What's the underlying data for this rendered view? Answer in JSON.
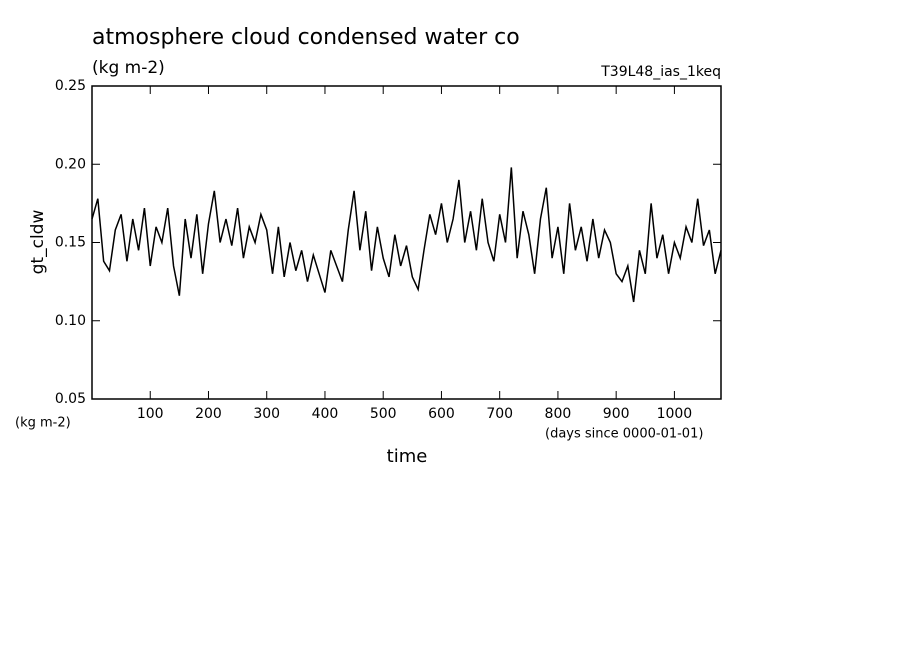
{
  "chart_data": {
    "type": "line",
    "title": "atmosphere cloud condensed water co",
    "subtitle": "(kg m-2)",
    "experiment": "T39L48_ias_1keq",
    "y_label": "gt_cldw",
    "y_unit": "(kg m-2)",
    "x_label": "time",
    "x_unit": "(days since 0000-01-01)",
    "x": [
      0,
      10,
      20,
      30,
      40,
      50,
      60,
      70,
      80,
      90,
      100,
      110,
      120,
      130,
      140,
      150,
      160,
      170,
      180,
      190,
      200,
      210,
      220,
      230,
      240,
      250,
      260,
      270,
      280,
      290,
      300,
      310,
      320,
      330,
      340,
      350,
      360,
      370,
      380,
      390,
      400,
      410,
      420,
      430,
      440,
      450,
      460,
      470,
      480,
      490,
      500,
      510,
      520,
      530,
      540,
      550,
      560,
      570,
      580,
      590,
      600,
      610,
      620,
      630,
      640,
      650,
      660,
      670,
      680,
      690,
      700,
      710,
      720,
      730,
      740,
      750,
      760,
      770,
      780,
      790,
      800,
      810,
      820,
      830,
      840,
      850,
      860,
      870,
      880,
      890,
      900,
      910,
      920,
      930,
      940,
      950,
      960,
      970,
      980,
      990,
      1000,
      1010,
      1020,
      1030,
      1040,
      1050,
      1060,
      1070,
      1080
    ],
    "series": [
      {
        "name": "gt_cldw",
        "color": "#000000",
        "values": [
          0.165,
          0.178,
          0.138,
          0.132,
          0.158,
          0.168,
          0.138,
          0.165,
          0.145,
          0.172,
          0.135,
          0.16,
          0.15,
          0.172,
          0.135,
          0.116,
          0.165,
          0.14,
          0.168,
          0.13,
          0.162,
          0.183,
          0.15,
          0.165,
          0.148,
          0.172,
          0.14,
          0.16,
          0.15,
          0.168,
          0.158,
          0.13,
          0.16,
          0.128,
          0.15,
          0.132,
          0.145,
          0.125,
          0.142,
          0.13,
          0.118,
          0.145,
          0.135,
          0.125,
          0.158,
          0.183,
          0.145,
          0.17,
          0.132,
          0.16,
          0.14,
          0.128,
          0.155,
          0.135,
          0.148,
          0.128,
          0.12,
          0.145,
          0.168,
          0.155,
          0.175,
          0.15,
          0.165,
          0.19,
          0.15,
          0.17,
          0.145,
          0.178,
          0.15,
          0.138,
          0.168,
          0.15,
          0.198,
          0.14,
          0.17,
          0.155,
          0.13,
          0.165,
          0.185,
          0.14,
          0.16,
          0.13,
          0.175,
          0.145,
          0.16,
          0.138,
          0.165,
          0.14,
          0.158,
          0.15,
          0.13,
          0.125,
          0.135,
          0.112,
          0.145,
          0.13,
          0.175,
          0.14,
          0.155,
          0.13,
          0.15,
          0.14,
          0.16,
          0.15,
          0.178,
          0.148,
          0.158,
          0.13,
          0.145
        ]
      }
    ],
    "xlim": [
      0,
      1080
    ],
    "xticks": [
      100,
      200,
      300,
      400,
      500,
      600,
      700,
      800,
      900,
      1000
    ],
    "ylim": [
      0.05,
      0.25
    ],
    "yticks": [
      0.05,
      {
        "value": 0.1,
        "label": "0.10"
      },
      0.15,
      {
        "value": 0.2,
        "label": "0.20"
      },
      0.25
    ]
  }
}
